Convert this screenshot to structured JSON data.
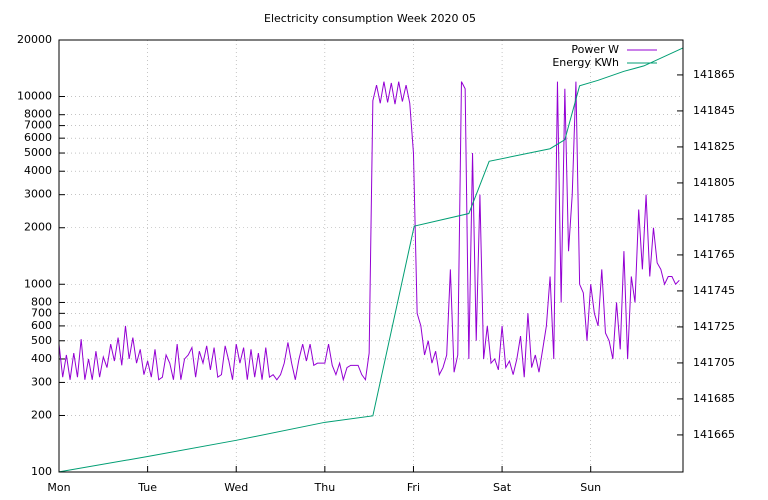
{
  "chart_data": {
    "type": "line",
    "title": "Electricity consumption Week 2020 05",
    "log_y": true,
    "grid": true,
    "legend": "top-right",
    "xlim": [
      0,
      169
    ],
    "xticks": [
      {
        "value": 0,
        "label": "Mon"
      },
      {
        "value": 24,
        "label": "Tue"
      },
      {
        "value": 48,
        "label": "Wed"
      },
      {
        "value": 72,
        "label": "Thu"
      },
      {
        "value": 96,
        "label": "Fri"
      },
      {
        "value": 120,
        "label": "Sat"
      },
      {
        "value": 144,
        "label": "Sun"
      }
    ],
    "ylim": [
      100,
      20000
    ],
    "yticks": [
      100,
      200,
      300,
      400,
      500,
      600,
      700,
      800,
      1000,
      2000,
      3000,
      4000,
      5000,
      6000,
      7000,
      8000,
      10000,
      20000
    ],
    "y2lim": [
      141644.4,
      141884.4
    ],
    "y2ticks": [
      141665,
      141685,
      141705,
      141725,
      141745,
      141765,
      141785,
      141805,
      141825,
      141845,
      141865
    ],
    "series": [
      {
        "name": "Power W",
        "color": "#9400d3",
        "x": [
          0,
          1,
          2,
          3,
          4,
          5,
          6,
          7,
          8,
          9,
          10,
          11,
          12,
          13,
          14,
          15,
          16,
          17,
          18,
          19,
          20,
          21,
          22,
          23,
          24,
          25,
          26,
          27,
          28,
          29,
          30,
          31,
          32,
          33,
          34,
          35,
          36,
          37,
          38,
          39,
          40,
          41,
          42,
          43,
          44,
          45,
          46,
          47,
          48,
          49,
          50,
          51,
          52,
          53,
          54,
          55,
          56,
          57,
          58,
          59,
          60,
          61,
          62,
          63,
          64,
          65,
          66,
          67,
          68,
          69,
          70,
          71,
          72,
          73,
          74,
          75,
          76,
          77,
          78,
          79,
          80,
          81,
          82,
          83,
          84,
          85,
          86,
          87,
          88,
          89,
          90,
          91,
          92,
          93,
          94,
          95,
          96,
          97,
          98,
          99,
          100,
          101,
          102,
          103,
          104,
          105,
          106,
          107,
          108,
          109,
          110,
          111,
          112,
          113,
          114,
          115,
          116,
          117,
          118,
          119,
          120,
          121,
          122,
          123,
          124,
          125,
          126,
          127,
          128,
          129,
          130,
          131,
          132,
          133,
          134,
          135,
          136,
          137,
          138,
          139,
          140,
          141,
          142,
          143,
          144,
          145,
          146,
          147,
          148,
          149,
          150,
          151,
          152,
          153,
          154,
          155,
          156,
          157,
          158,
          159,
          160,
          161,
          162,
          163,
          164,
          165,
          166,
          167,
          168
        ],
        "values": [
          480,
          320,
          420,
          310,
          430,
          320,
          510,
          310,
          400,
          310,
          440,
          320,
          410,
          360,
          480,
          390,
          520,
          370,
          600,
          400,
          520,
          380,
          450,
          330,
          390,
          320,
          450,
          310,
          320,
          420,
          380,
          310,
          480,
          310,
          400,
          420,
          460,
          320,
          440,
          380,
          470,
          350,
          460,
          320,
          330,
          470,
          390,
          310,
          480,
          380,
          460,
          310,
          450,
          320,
          430,
          310,
          460,
          320,
          330,
          310,
          330,
          380,
          490,
          380,
          310,
          400,
          480,
          390,
          480,
          370,
          380,
          380,
          380,
          480,
          370,
          330,
          380,
          310,
          360,
          370,
          370,
          370,
          330,
          310,
          430,
          9500,
          11500,
          9200,
          12000,
          9300,
          11800,
          9100,
          12000,
          9400,
          11500,
          9200,
          5000,
          700,
          600,
          420,
          500,
          380,
          440,
          330,
          360,
          420,
          1200,
          340,
          420,
          12000,
          11000,
          400,
          5000,
          500,
          3000,
          400,
          600,
          380,
          400,
          350,
          600,
          360,
          390,
          330,
          400,
          530,
          320,
          700,
          360,
          420,
          340,
          450,
          600,
          1100,
          400,
          12000,
          800,
          11000,
          1500,
          3000,
          12000,
          1000,
          900,
          500,
          1000,
          700,
          600,
          1200,
          550,
          500,
          400,
          800,
          450,
          1500,
          400,
          1100,
          800,
          2500,
          1200,
          3000,
          1100,
          2000,
          1300,
          1200,
          1000,
          1100,
          1100,
          1000,
          1050
        ]
      },
      {
        "name": "Energy KWh",
        "color": "#009e73",
        "axis": "y2",
        "x": [
          0,
          24,
          48,
          72,
          85,
          96.2,
          111,
          116.5,
          133,
          137,
          141,
          146,
          153,
          158.4,
          169
        ],
        "values": [
          141644.5,
          141653,
          141662,
          141672,
          141675.6,
          141781,
          141788,
          141817,
          141824,
          141829,
          141859,
          141862,
          141867,
          141870,
          141880
        ]
      }
    ]
  }
}
